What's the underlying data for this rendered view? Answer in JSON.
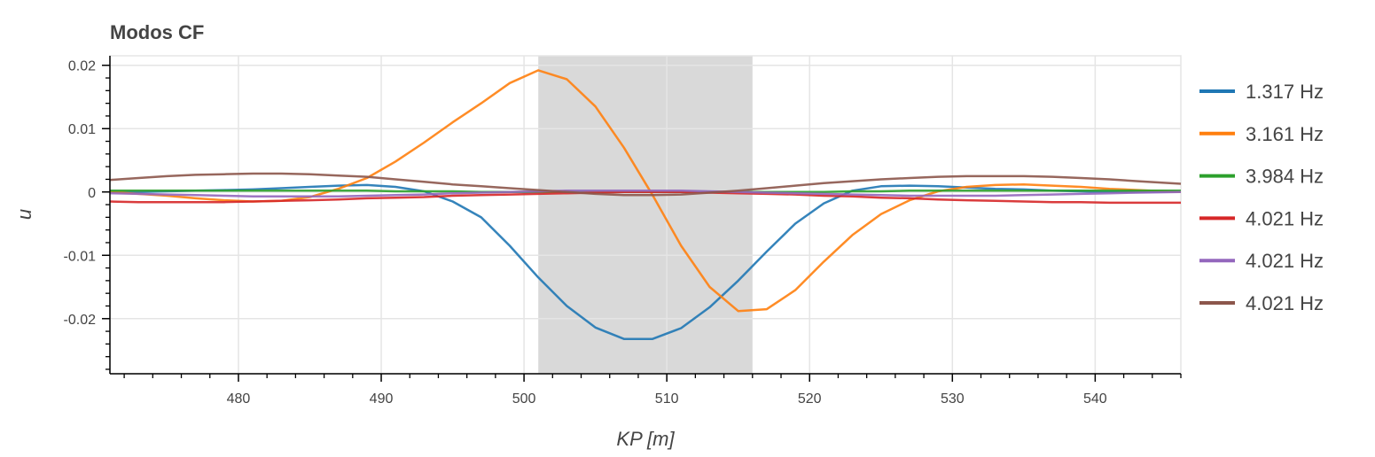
{
  "chart_data": {
    "type": "line",
    "title": "Modos CF",
    "xlabel": "KP [m]",
    "ylabel": "u",
    "xlim": [
      471,
      546
    ],
    "ylim": [
      -0.0287,
      0.0215
    ],
    "x_ticks": [
      480,
      490,
      500,
      510,
      520,
      530,
      540
    ],
    "x_tick_labels": [
      "480",
      "490",
      "500",
      "510",
      "520",
      "530",
      "540"
    ],
    "y_ticks": [
      0.02,
      0.01,
      0,
      -0.01,
      -0.02
    ],
    "y_tick_labels": [
      "0.02",
      "0.01",
      "0",
      "-0.01",
      "-0.02"
    ],
    "grid": true,
    "legend_position": "right",
    "shaded_region": {
      "x": [
        501,
        516
      ],
      "color": "#d9d9d9"
    },
    "x": [
      471,
      473,
      475,
      477,
      479,
      481,
      483,
      485,
      487,
      489,
      491,
      493,
      495,
      497,
      499,
      501,
      503,
      505,
      507,
      509,
      511,
      513,
      515,
      517,
      519,
      521,
      523,
      525,
      527,
      529,
      531,
      533,
      535,
      537,
      539,
      541,
      543,
      546
    ],
    "series": [
      {
        "name": "1.317 Hz",
        "color": "#1f77b4",
        "values": [
          0.0,
          0.0,
          0.0001,
          0.0002,
          0.0003,
          0.0004,
          0.0006,
          0.0008,
          0.001,
          0.0011,
          0.0008,
          0.0001,
          -0.0015,
          -0.004,
          -0.0085,
          -0.0135,
          -0.018,
          -0.0214,
          -0.0232,
          -0.0232,
          -0.0215,
          -0.0182,
          -0.014,
          -0.0094,
          -0.005,
          -0.0018,
          0.0002,
          0.0009,
          0.001,
          0.0009,
          0.0007,
          0.0005,
          0.0004,
          0.0002,
          0.0001,
          0.0,
          0.0,
          0.0
        ]
      },
      {
        "name": "3.161 Hz",
        "color": "#ff7f0e",
        "values": [
          0.0,
          -0.0003,
          -0.0006,
          -0.001,
          -0.0013,
          -0.0015,
          -0.0014,
          -0.0008,
          0.0005,
          0.0022,
          0.0048,
          0.0078,
          0.011,
          0.014,
          0.0172,
          0.0192,
          0.0178,
          0.0135,
          0.007,
          -0.0005,
          -0.0085,
          -0.015,
          -0.0188,
          -0.0185,
          -0.0155,
          -0.011,
          -0.0068,
          -0.0035,
          -0.0013,
          0.0001,
          0.0008,
          0.0011,
          0.0012,
          0.001,
          0.0008,
          0.0005,
          0.0003,
          0.0
        ]
      },
      {
        "name": "3.984 Hz",
        "color": "#2ca02c",
        "values": [
          0.0002,
          0.0002,
          0.0002,
          0.0002,
          0.0002,
          0.0002,
          0.0002,
          0.0002,
          0.0002,
          0.0002,
          0.0001,
          0.0001,
          0.0001,
          0.0,
          0.0,
          0.0,
          0.0,
          0.0,
          0.0,
          0.0,
          0.0,
          0.0,
          0.0,
          0.0,
          0.0,
          0.0,
          0.0001,
          0.0001,
          0.0002,
          0.0002,
          0.0002,
          0.0002,
          0.0002,
          0.0002,
          0.0002,
          0.0002,
          0.0002,
          0.0002
        ]
      },
      {
        "name": "4.021 Hz",
        "color": "#d62728",
        "values": [
          -0.0015,
          -0.0016,
          -0.0016,
          -0.0016,
          -0.0016,
          -0.0015,
          -0.0014,
          -0.0013,
          -0.0012,
          -0.001,
          -0.0009,
          -0.0008,
          -0.0006,
          -0.0005,
          -0.0004,
          -0.0003,
          -0.0002,
          -0.0001,
          0.0,
          0.0,
          0.0,
          -0.0001,
          -0.0002,
          -0.0003,
          -0.0004,
          -0.0006,
          -0.0007,
          -0.0009,
          -0.001,
          -0.0012,
          -0.0013,
          -0.0014,
          -0.0015,
          -0.0016,
          -0.0016,
          -0.0017,
          -0.0017,
          -0.0017
        ]
      },
      {
        "name": "4.021 Hz",
        "color": "#9467bd",
        "values": [
          -0.0002,
          -0.0003,
          -0.0004,
          -0.0005,
          -0.0006,
          -0.0007,
          -0.0007,
          -0.0007,
          -0.0007,
          -0.0006,
          -0.0005,
          -0.0004,
          -0.0002,
          -0.0001,
          0.0,
          0.0001,
          0.0002,
          0.0002,
          0.0002,
          0.0002,
          0.0002,
          0.0001,
          0.0,
          -0.0001,
          -0.0002,
          -0.0003,
          -0.0004,
          -0.0005,
          -0.0006,
          -0.0006,
          -0.0006,
          -0.0006,
          -0.0005,
          -0.0004,
          -0.0003,
          -0.0002,
          -0.0001,
          0.0
        ]
      },
      {
        "name": "4.021 Hz",
        "color": "#8c564b",
        "values": [
          0.0019,
          0.0022,
          0.0025,
          0.0027,
          0.0028,
          0.0029,
          0.0029,
          0.0028,
          0.0026,
          0.0024,
          0.002,
          0.0016,
          0.0012,
          0.0009,
          0.0006,
          0.0003,
          0.0,
          -0.0003,
          -0.0005,
          -0.0005,
          -0.0004,
          -0.0001,
          0.0002,
          0.0006,
          0.001,
          0.0014,
          0.0017,
          0.002,
          0.0022,
          0.0024,
          0.0025,
          0.0025,
          0.0025,
          0.0024,
          0.0022,
          0.002,
          0.0017,
          0.0013
        ]
      }
    ]
  }
}
